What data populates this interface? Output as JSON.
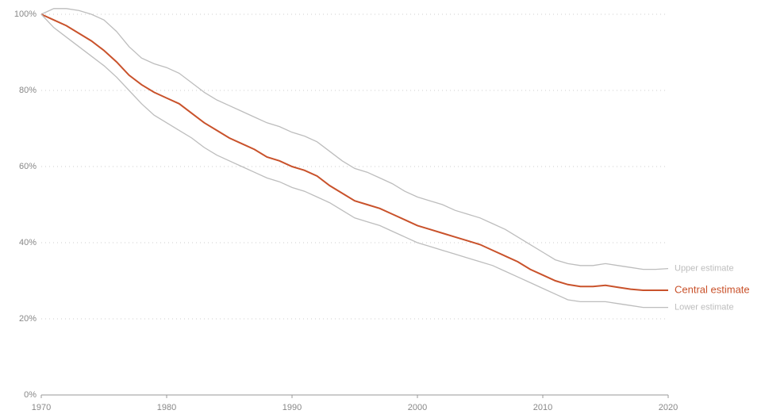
{
  "chart_data": {
    "type": "line",
    "x": [
      1970,
      1971,
      1972,
      1973,
      1974,
      1975,
      1976,
      1977,
      1978,
      1979,
      1980,
      1981,
      1982,
      1983,
      1984,
      1985,
      1986,
      1987,
      1988,
      1989,
      1990,
      1991,
      1992,
      1993,
      1994,
      1995,
      1996,
      1997,
      1998,
      1999,
      2000,
      2001,
      2002,
      2003,
      2004,
      2005,
      2006,
      2007,
      2008,
      2009,
      2010,
      2011,
      2012,
      2013,
      2014,
      2015,
      2016,
      2017,
      2018,
      2019,
      2020
    ],
    "series": [
      {
        "name": "Upper estimate",
        "color": "#bdbdbd",
        "values": [
          100,
          101.5,
          101.5,
          101,
          100,
          98.5,
          95.5,
          91.5,
          88.5,
          87,
          86,
          84.5,
          82,
          79.5,
          77.5,
          76,
          74.5,
          73,
          71.5,
          70.5,
          69,
          68,
          66.5,
          64,
          61.5,
          59.5,
          58.5,
          57,
          55.5,
          53.5,
          52,
          51,
          50,
          48.5,
          47.5,
          46.5,
          45,
          43.5,
          41.5,
          39.5,
          37.5,
          35.5,
          34.5,
          34,
          34,
          34.5,
          34,
          33.5,
          33,
          33,
          33.2
        ]
      },
      {
        "name": "Central estimate",
        "color": "#c9522b",
        "values": [
          100,
          98.5,
          97,
          95,
          93,
          90.5,
          87.5,
          84,
          81.5,
          79.5,
          78,
          76.5,
          74,
          71.5,
          69.5,
          67.5,
          66,
          64.5,
          62.5,
          61.5,
          60,
          59,
          57.5,
          55,
          53,
          51,
          50,
          49,
          47.5,
          46,
          44.5,
          43.5,
          42.5,
          41.5,
          40.5,
          39.5,
          38,
          36.5,
          35,
          33,
          31.5,
          30,
          29,
          28.5,
          28.5,
          28.8,
          28.3,
          27.8,
          27.5,
          27.5,
          27.5
        ]
      },
      {
        "name": "Lower estimate",
        "color": "#bdbdbd",
        "values": [
          100,
          96.5,
          94,
          91.5,
          89,
          86.5,
          83.5,
          80,
          76.5,
          73.5,
          71.5,
          69.5,
          67.5,
          65,
          63,
          61.5,
          60,
          58.5,
          57,
          56,
          54.5,
          53.5,
          52,
          50.5,
          48.5,
          46.5,
          45.5,
          44.5,
          43,
          41.5,
          40,
          39,
          38,
          37,
          36,
          35,
          34,
          32.5,
          31,
          29.5,
          28,
          26.5,
          25,
          24.5,
          24.5,
          24.5,
          24,
          23.5,
          23,
          23,
          23
        ]
      }
    ],
    "xlim": [
      1970,
      2020
    ],
    "xticks": [
      1970,
      1980,
      1990,
      2000,
      2010,
      2020
    ],
    "ylim": [
      0,
      100
    ],
    "yticks": [
      {
        "value": 0,
        "label": "0%"
      },
      {
        "value": 20,
        "label": "20%"
      },
      {
        "value": 40,
        "label": "40%"
      },
      {
        "value": 60,
        "label": "60%"
      },
      {
        "value": 80,
        "label": "80%"
      },
      {
        "value": 100,
        "label": "100%"
      }
    ],
    "grid": true
  }
}
